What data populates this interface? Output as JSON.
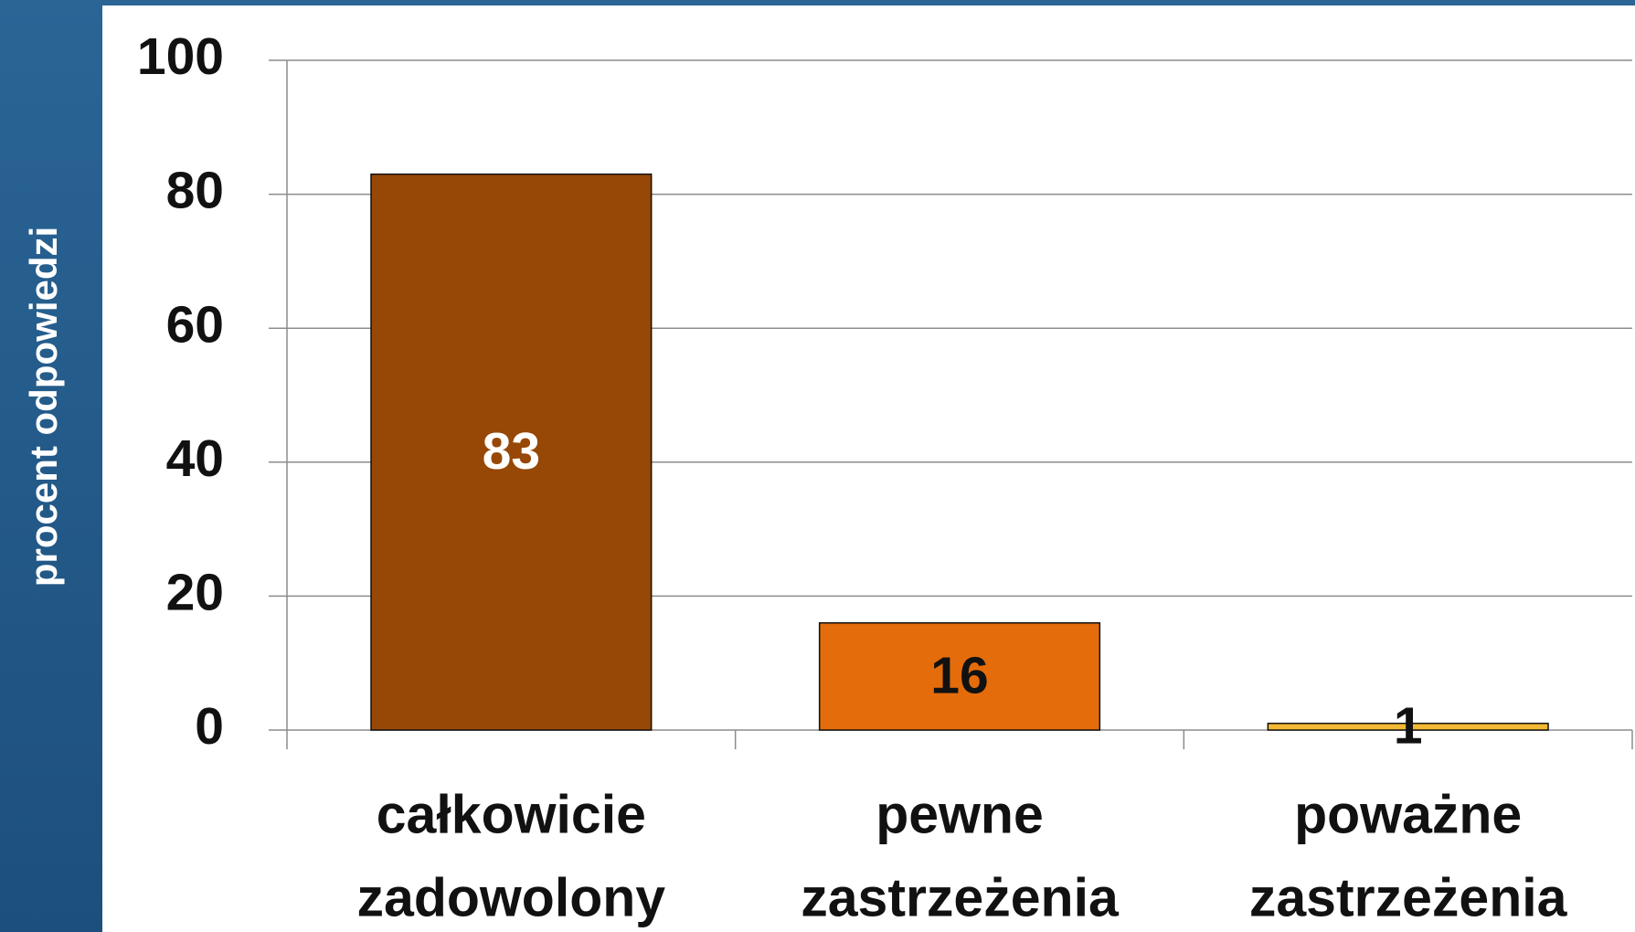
{
  "chart_data": {
    "type": "bar",
    "ylabel": "procent odpowiedzi",
    "categories": [
      [
        "całkowicie",
        "zadowolony"
      ],
      [
        "pewne",
        "zastrzeżenia"
      ],
      [
        "poważne",
        "zastrzeżenia"
      ]
    ],
    "values": [
      83,
      16,
      1
    ],
    "colors": [
      "#974706",
      "#e46c0a",
      "#f2b833"
    ],
    "label_colors": [
      "#ffffff",
      "#111111",
      "#111111"
    ],
    "ylim": [
      0,
      100
    ],
    "yticks": [
      0,
      20,
      40,
      60,
      80,
      100
    ],
    "grid": true
  }
}
